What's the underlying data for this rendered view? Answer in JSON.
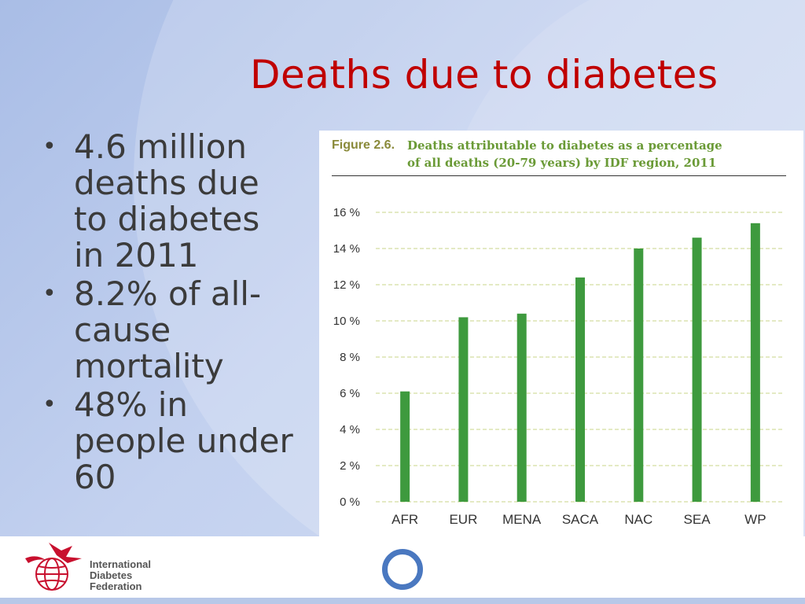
{
  "slide": {
    "title": "Deaths due to diabetes",
    "bullets": [
      "4.6 million deaths due to diabetes in 2011",
      "8.2% of all-cause mortality",
      "48% in people under 60"
    ]
  },
  "figure": {
    "label": "Figure 2.6.",
    "title_line1": "Deaths attributable to diabetes as a percentage",
    "title_line2": "of all deaths (20-79 years) by IDF region, 2011"
  },
  "chart_data": {
    "type": "bar",
    "title": "Deaths attributable to diabetes as a percentage of all deaths (20-79 years) by IDF region, 2011",
    "categories": [
      "AFR",
      "EUR",
      "MENA",
      "SACA",
      "NAC",
      "SEA",
      "WP"
    ],
    "values": [
      6.1,
      10.2,
      10.4,
      12.4,
      14.0,
      14.6,
      15.4
    ],
    "ylim": [
      0,
      16
    ],
    "yticks": [
      "0 %",
      "2 %",
      "4 %",
      "6 %",
      "8 %",
      "10 %",
      "12 %",
      "14 %",
      "16 %"
    ],
    "xlabel": "",
    "ylabel": "",
    "grid": true,
    "bar_color": "#3e9a3e",
    "grid_color": "#c8d68a"
  },
  "footer": {
    "org_lines": [
      "International",
      "Diabetes",
      "Federation"
    ]
  },
  "colors": {
    "title": "#c00000",
    "bullet_text": "#3b3b3b",
    "ring": "#4a78c0"
  }
}
